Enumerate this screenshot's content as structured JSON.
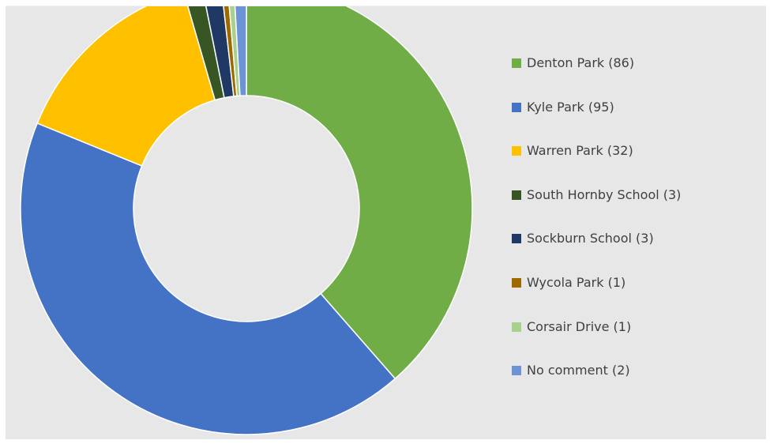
{
  "chart_data": {
    "type": "pie",
    "variant": "donut",
    "title": "",
    "legend_position": "right",
    "slices": [
      {
        "label": "Denton Park (86)",
        "value": 86,
        "color": "#70ad47"
      },
      {
        "label": "Kyle Park (95)",
        "value": 95,
        "color": "#4472c4"
      },
      {
        "label": "Warren Park (32)",
        "value": 32,
        "color": "#ffc000"
      },
      {
        "label": "South Hornby School (3)",
        "value": 3,
        "color": "#375623"
      },
      {
        "label": "Sockburn School (3)",
        "value": 3,
        "color": "#203864"
      },
      {
        "label": "Wycola Park (1)",
        "value": 1,
        "color": "#9e6a00"
      },
      {
        "label": "Corsair Drive (1)",
        "value": 1,
        "color": "#a9d18e"
      },
      {
        "label": "No comment (2)",
        "value": 2,
        "color": "#6b93d6"
      }
    ]
  }
}
